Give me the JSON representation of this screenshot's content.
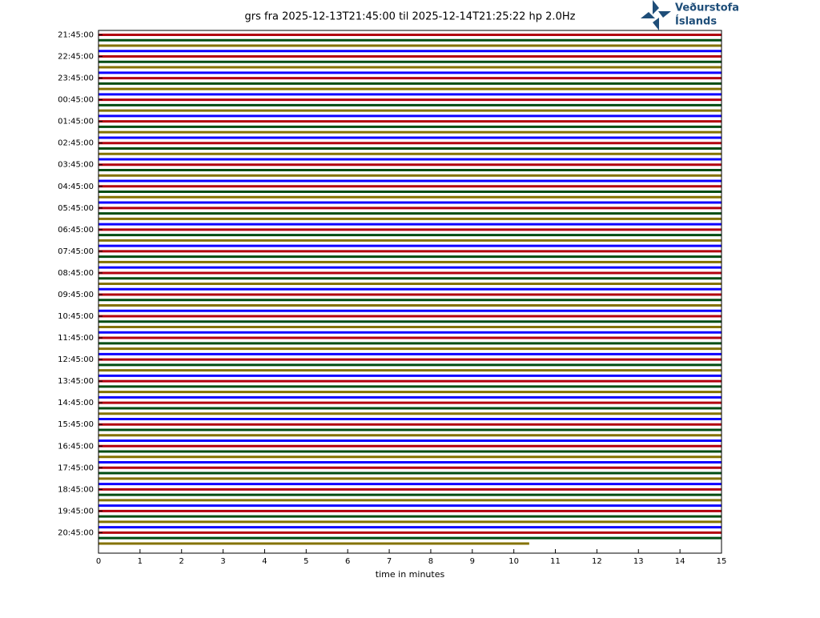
{
  "chart_data": {
    "type": "helicorder",
    "title": "grs fra 2025-12-13T21:45:00 til 2025-12-14T21:25:22 hp 2.0Hz",
    "x_label": "time in minutes",
    "xlim": [
      0,
      15
    ],
    "xticks": [
      0,
      1,
      2,
      3,
      4,
      5,
      6,
      7,
      8,
      9,
      10,
      11,
      12,
      13,
      14,
      15
    ],
    "yticks": [
      "21:45:00",
      "22:45:00",
      "23:45:00",
      "00:45:00",
      "01:45:00",
      "02:45:00",
      "03:45:00",
      "04:45:00",
      "05:45:00",
      "06:45:00",
      "07:45:00",
      "08:45:00",
      "09:45:00",
      "10:45:00",
      "11:45:00",
      "12:45:00",
      "13:45:00",
      "14:45:00",
      "15:45:00",
      "16:45:00",
      "17:45:00",
      "18:45:00",
      "19:45:00",
      "20:45:00"
    ],
    "trace_colors": [
      "#B2000F",
      "#004C12",
      "#847200",
      "#0E01FF"
    ],
    "trace_count": 95,
    "last_trace_end": 10.37
  },
  "logo": {
    "line1": "Veðurstofa",
    "line2": "Íslands"
  }
}
